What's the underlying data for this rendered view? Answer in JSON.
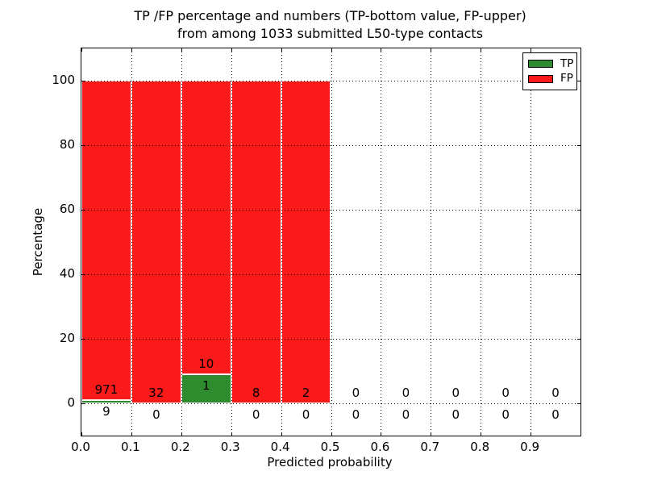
{
  "chart_data": {
    "type": "bar",
    "stacked": true,
    "title_line1": "TP /FP percentage and numbers (TP-bottom value, FP-upper)",
    "title_line2": "from among 1033 submitted L50-type contacts",
    "xlabel": "Predicted probability",
    "ylabel": "Percentage",
    "total_submitted_contacts": 1033,
    "xlim": [
      0.0,
      1.0
    ],
    "ylim": [
      -10,
      110
    ],
    "grid": "dotted",
    "xticks": [
      {
        "value": 0.0,
        "label": "0.0"
      },
      {
        "value": 0.1,
        "label": "0.1"
      },
      {
        "value": 0.2,
        "label": "0.2"
      },
      {
        "value": 0.3,
        "label": "0.3"
      },
      {
        "value": 0.4,
        "label": "0.4"
      },
      {
        "value": 0.5,
        "label": "0.5"
      },
      {
        "value": 0.6,
        "label": "0.6"
      },
      {
        "value": 0.7,
        "label": "0.7"
      },
      {
        "value": 0.8,
        "label": "0.8"
      },
      {
        "value": 0.9,
        "label": "0.9"
      }
    ],
    "yticks": [
      {
        "value": 0,
        "label": "0"
      },
      {
        "value": 20,
        "label": "20"
      },
      {
        "value": 40,
        "label": "40"
      },
      {
        "value": 60,
        "label": "60"
      },
      {
        "value": 80,
        "label": "80"
      },
      {
        "value": 100,
        "label": "100"
      }
    ],
    "legend": {
      "position": "upper-right",
      "entries": [
        {
          "label": "TP",
          "color": "#2e8b2e"
        },
        {
          "label": "FP",
          "color": "#fa1a1a"
        }
      ]
    },
    "bins": [
      {
        "x_start": 0.0,
        "x_end": 0.1,
        "tp_count": 9,
        "fp_count": 971,
        "tp_pct": 0.92,
        "fp_pct": 99.08,
        "bar": true
      },
      {
        "x_start": 0.1,
        "x_end": 0.2,
        "tp_count": 0,
        "fp_count": 32,
        "tp_pct": 0.0,
        "fp_pct": 100.0,
        "bar": true
      },
      {
        "x_start": 0.2,
        "x_end": 0.3,
        "tp_count": 1,
        "fp_count": 10,
        "tp_pct": 9.09,
        "fp_pct": 90.91,
        "bar": true
      },
      {
        "x_start": 0.3,
        "x_end": 0.4,
        "tp_count": 0,
        "fp_count": 8,
        "tp_pct": 0.0,
        "fp_pct": 100.0,
        "bar": true
      },
      {
        "x_start": 0.4,
        "x_end": 0.5,
        "tp_count": 0,
        "fp_count": 2,
        "tp_pct": 0.0,
        "fp_pct": 100.0,
        "bar": true
      },
      {
        "x_start": 0.5,
        "x_end": 0.6,
        "tp_count": 0,
        "fp_count": 0,
        "tp_pct": 0.0,
        "fp_pct": 0.0,
        "bar": false
      },
      {
        "x_start": 0.6,
        "x_end": 0.7,
        "tp_count": 0,
        "fp_count": 0,
        "tp_pct": 0.0,
        "fp_pct": 0.0,
        "bar": false
      },
      {
        "x_start": 0.7,
        "x_end": 0.8,
        "tp_count": 0,
        "fp_count": 0,
        "tp_pct": 0.0,
        "fp_pct": 0.0,
        "bar": false
      },
      {
        "x_start": 0.8,
        "x_end": 0.9,
        "tp_count": 0,
        "fp_count": 0,
        "tp_pct": 0.0,
        "fp_pct": 0.0,
        "bar": false
      },
      {
        "x_start": 0.9,
        "x_end": 1.0,
        "tp_count": 0,
        "fp_count": 0,
        "tp_pct": 0.0,
        "fp_pct": 0.0,
        "bar": false
      }
    ]
  },
  "colors": {
    "tp_green": "#2e8b2e",
    "fp_red": "#fa1a1a",
    "bar_edge": "#ffffff",
    "axis": "#000000",
    "background": "#ffffff"
  }
}
